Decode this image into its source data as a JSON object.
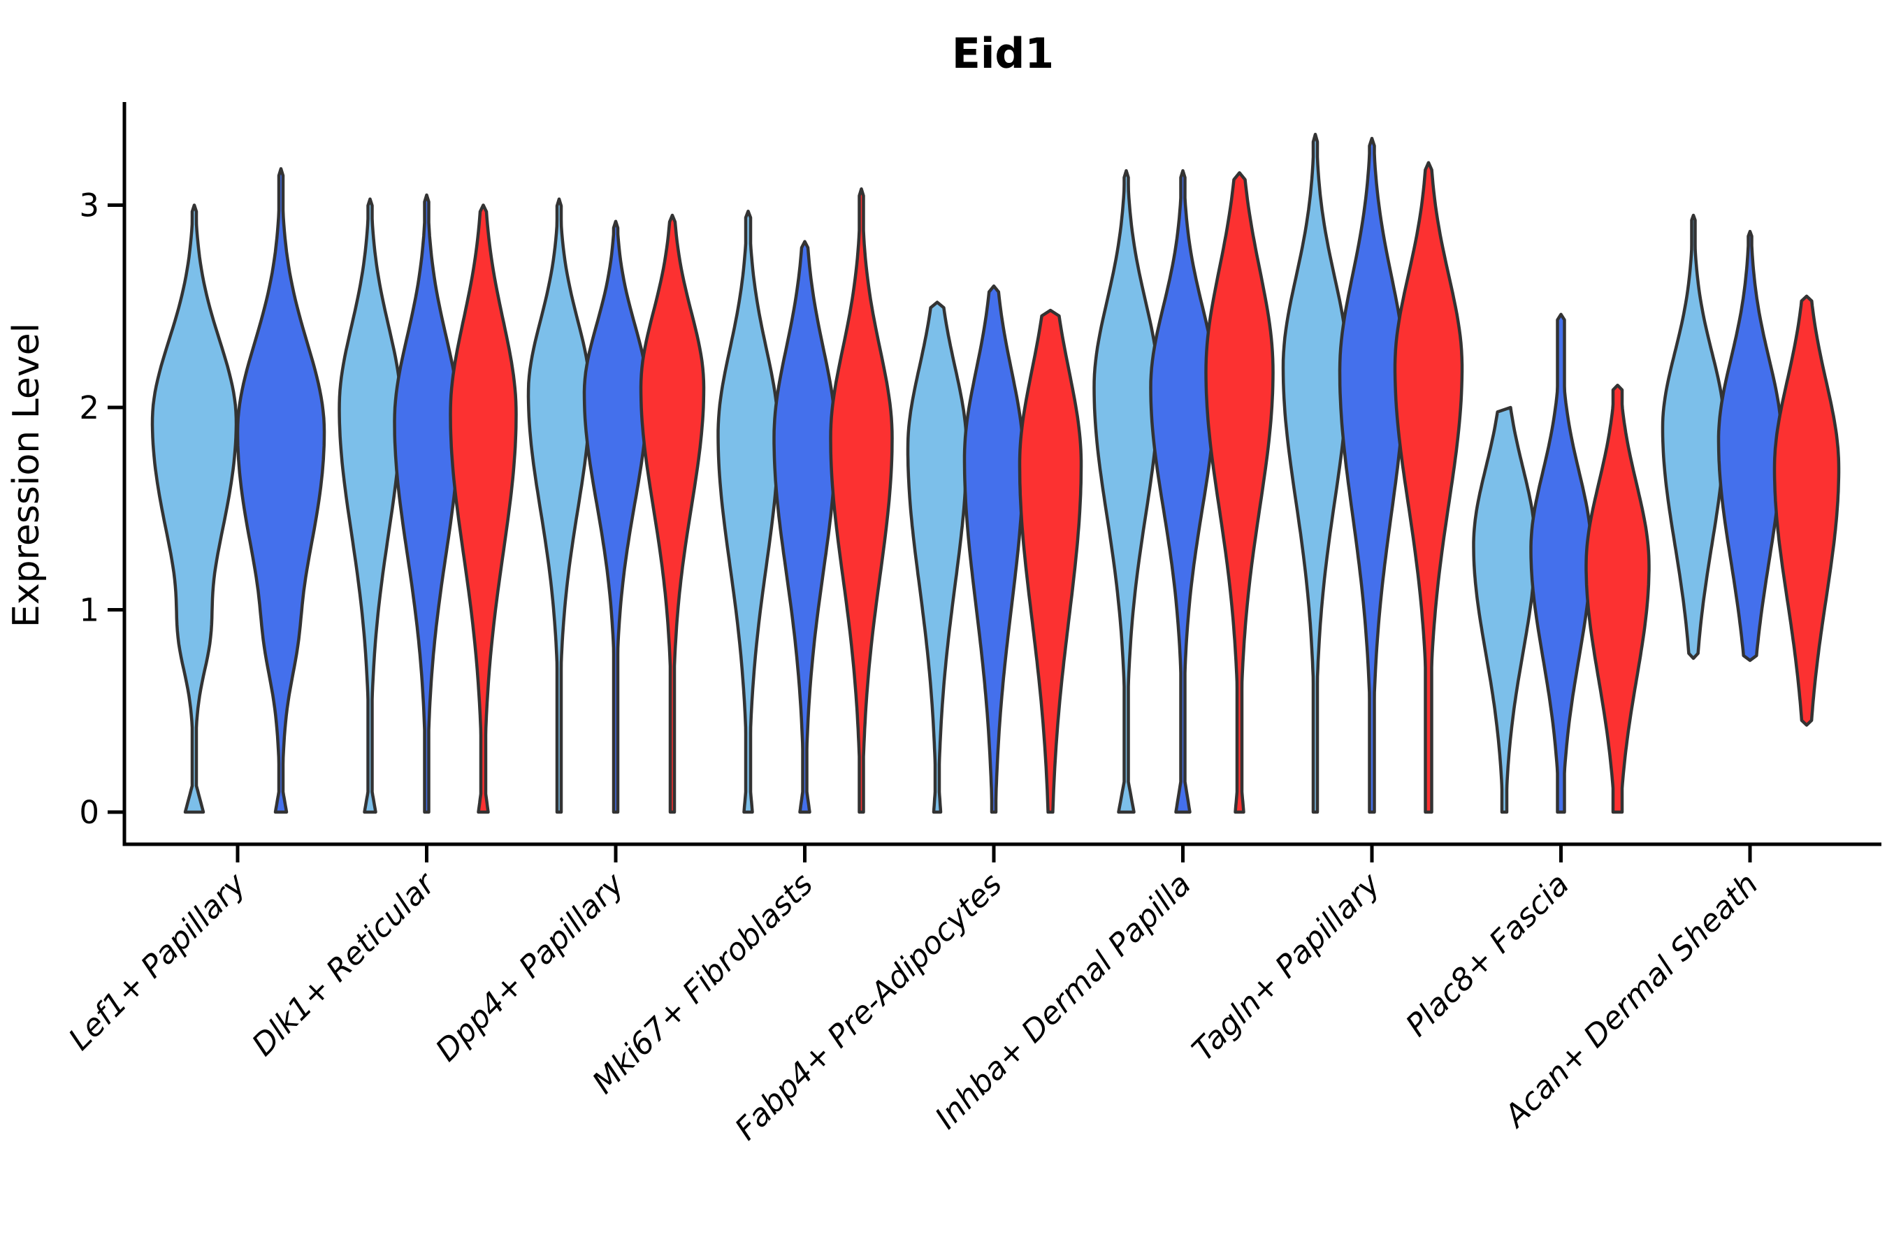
{
  "title": "Eid1",
  "colors": {
    "light_blue": "#7CBFEA",
    "dark_blue": "#4470EC",
    "red": "#FC3131",
    "violin_outline": "#333333",
    "axis": "#000000"
  },
  "chart_data": {
    "type": "violin",
    "title": "Eid1",
    "ylabel": "Expression Level",
    "xlabel": "",
    "ylim": [
      0,
      3.5
    ],
    "yticks": [
      "0",
      "1",
      "2",
      "3"
    ],
    "grid": false,
    "legend": "none",
    "categories": [
      "Lef1+ Papillary",
      "Dlk1+ Reticular",
      "Dpp4+ Papillary",
      "Mki67+ Fibroblasts",
      "Fabp4+ Pre-Adipocytes",
      "Inhba+ Dermal Papilla",
      "Tagln+ Papillary",
      "Plac8+ Fascia",
      "Acan+ Dermal Sheath"
    ],
    "splits": [
      {
        "split": 1,
        "color_key": "light_blue"
      },
      {
        "split": 2,
        "color_key": "dark_blue"
      },
      {
        "split": 3,
        "color_key": "red"
      }
    ],
    "violins": [
      {
        "category": "Lef1+ Papillary",
        "split": 1,
        "dx": -62,
        "min": 0,
        "max": 3.0,
        "mode": 1.93,
        "spread": 0.4,
        "taper": 1.5,
        "hw": 60,
        "stem": 3,
        "foot": {
          "w": 13,
          "h": 0.13
        },
        "bump": {
          "v": 0.85,
          "w": 11,
          "s": 0.17
        },
        "flat_top": false
      },
      {
        "category": "Lef1+ Papillary",
        "split": 2,
        "dx": 62,
        "min": 0,
        "max": 3.18,
        "mode": 1.88,
        "spread": 0.44,
        "taper": 1.5,
        "hw": 62,
        "stem": 3,
        "foot": {
          "w": 8,
          "h": 0.1
        },
        "bump": {
          "v": 0.82,
          "w": 7,
          "s": 0.18
        },
        "flat_top": false
      },
      {
        "category": "Dlk1+ Reticular",
        "split": 1,
        "dx": -81,
        "min": 0,
        "max": 3.03,
        "mode": 2.0,
        "spread": 0.4,
        "taper": 1.55,
        "hw": 44,
        "stem": 3,
        "foot": {
          "w": 8,
          "h": 0.1
        },
        "bump": null,
        "flat_top": false
      },
      {
        "category": "Dlk1+ Reticular",
        "split": 2,
        "dx": 0,
        "min": 0,
        "max": 3.05,
        "mode": 1.93,
        "spread": 0.42,
        "taper": 1.55,
        "hw": 46,
        "stem": 3,
        "foot": null,
        "bump": null,
        "flat_top": false
      },
      {
        "category": "Dlk1+ Reticular",
        "split": 3,
        "dx": 81,
        "min": 0,
        "max": 3.0,
        "mode": 1.97,
        "spread": 0.46,
        "taper": 1.5,
        "hw": 47,
        "stem": 3.5,
        "foot": {
          "w": 7,
          "h": 0.09
        },
        "bump": null,
        "flat_top": false
      },
      {
        "category": "Dpp4+ Papillary",
        "split": 1,
        "dx": -81,
        "min": 0,
        "max": 3.03,
        "mode": 2.07,
        "spread": 0.36,
        "taper": 1.6,
        "hw": 44,
        "stem": 3,
        "foot": null,
        "bump": null,
        "flat_top": false
      },
      {
        "category": "Dpp4+ Papillary",
        "split": 2,
        "dx": 0,
        "min": 0,
        "max": 2.92,
        "mode": 2.07,
        "spread": 0.34,
        "taper": 1.6,
        "hw": 45,
        "stem": 3,
        "foot": null,
        "bump": null,
        "flat_top": false
      },
      {
        "category": "Dpp4+ Papillary",
        "split": 3,
        "dx": 81,
        "min": 0,
        "max": 2.95,
        "mode": 2.1,
        "spread": 0.37,
        "taper": 1.6,
        "hw": 45,
        "stem": 3,
        "foot": null,
        "bump": null,
        "flat_top": false
      },
      {
        "category": "Mki67+ Fibroblasts",
        "split": 1,
        "dx": -81,
        "min": 0,
        "max": 2.97,
        "mode": 1.87,
        "spread": 0.42,
        "taper": 1.55,
        "hw": 43,
        "stem": 3.5,
        "foot": {
          "w": 6,
          "h": 0.1
        },
        "bump": null,
        "flat_top": false
      },
      {
        "category": "Mki67+ Fibroblasts",
        "split": 2,
        "dx": 0,
        "min": 0,
        "max": 2.82,
        "mode": 1.85,
        "spread": 0.44,
        "taper": 1.5,
        "hw": 44,
        "stem": 3,
        "foot": {
          "w": 7,
          "h": 0.1
        },
        "bump": null,
        "flat_top": false
      },
      {
        "category": "Mki67+ Fibroblasts",
        "split": 3,
        "dx": 81,
        "min": 0,
        "max": 3.08,
        "mode": 1.85,
        "spread": 0.44,
        "taper": 1.55,
        "hw": 44,
        "stem": 3,
        "foot": null,
        "bump": null,
        "flat_top": false
      },
      {
        "category": "Fabp4+ Pre-Adipocytes",
        "split": 1,
        "dx": -81,
        "min": 0,
        "max": 2.52,
        "mode": 1.8,
        "spread": 0.4,
        "taper": 1.7,
        "hw": 42,
        "stem": 3,
        "foot": {
          "w": 5,
          "h": 0.1
        },
        "bump": null,
        "flat_top": false
      },
      {
        "category": "Fabp4+ Pre-Adipocytes",
        "split": 2,
        "dx": 0,
        "min": 0,
        "max": 2.6,
        "mode": 1.75,
        "spread": 0.43,
        "taper": 1.7,
        "hw": 42,
        "stem": 3,
        "foot": null,
        "bump": null,
        "flat_top": false
      },
      {
        "category": "Fabp4+ Pre-Adipocytes",
        "split": 3,
        "dx": 81,
        "min": 0,
        "max": 2.48,
        "mode": 1.72,
        "spread": 0.46,
        "taper": 1.65,
        "hw": 44,
        "stem": 3,
        "foot": null,
        "bump": null,
        "flat_top": false
      },
      {
        "category": "Inhba+ Dermal Papilla",
        "split": 1,
        "dx": -81,
        "min": 0,
        "max": 3.17,
        "mode": 2.1,
        "spread": 0.42,
        "taper": 1.5,
        "hw": 46,
        "stem": 3,
        "foot": {
          "w": 11,
          "h": 0.15
        },
        "bump": null,
        "flat_top": false
      },
      {
        "category": "Inhba+ Dermal Papilla",
        "split": 2,
        "dx": 0,
        "min": 0,
        "max": 3.17,
        "mode": 2.1,
        "spread": 0.4,
        "taper": 1.5,
        "hw": 46,
        "stem": 3,
        "foot": {
          "w": 10,
          "h": 0.15
        },
        "bump": null,
        "flat_top": false
      },
      {
        "category": "Inhba+ Dermal Papilla",
        "split": 3,
        "dx": 81,
        "min": 0,
        "max": 3.16,
        "mode": 2.18,
        "spread": 0.5,
        "taper": 1.35,
        "hw": 48,
        "stem": 3.5,
        "foot": {
          "w": 6,
          "h": 0.1
        },
        "bump": null,
        "flat_top": false
      },
      {
        "category": "Tagln+ Papillary",
        "split": 1,
        "dx": -81,
        "min": 0,
        "max": 3.35,
        "mode": 2.2,
        "spread": 0.44,
        "taper": 1.5,
        "hw": 46,
        "stem": 3,
        "foot": null,
        "bump": null,
        "flat_top": false
      },
      {
        "category": "Tagln+ Papillary",
        "split": 2,
        "dx": 0,
        "min": 0,
        "max": 3.33,
        "mode": 2.18,
        "spread": 0.47,
        "taper": 1.5,
        "hw": 46,
        "stem": 3.5,
        "foot": null,
        "bump": null,
        "flat_top": false
      },
      {
        "category": "Tagln+ Papillary",
        "split": 3,
        "dx": 81,
        "min": 0,
        "max": 3.21,
        "mode": 2.2,
        "spread": 0.45,
        "taper": 1.5,
        "hw": 48,
        "stem": 4.5,
        "foot": null,
        "bump": null,
        "flat_top": false
      },
      {
        "category": "Plac8+ Fascia",
        "split": 1,
        "dx": -81,
        "min": 0,
        "max": 2.0,
        "mode": 1.32,
        "spread": 0.38,
        "taper": 1.4,
        "hw": 44,
        "stem": 3.5,
        "foot": null,
        "bump": null,
        "flat_top": true
      },
      {
        "category": "Plac8+ Fascia",
        "split": 2,
        "dx": 0,
        "min": 0,
        "max": 2.46,
        "mode": 1.3,
        "spread": 0.38,
        "taper": 1.4,
        "hw": 43,
        "stem": 5,
        "foot": null,
        "bump": null,
        "flat_top": false
      },
      {
        "category": "Plac8+ Fascia",
        "split": 3,
        "dx": 81,
        "min": 0,
        "max": 2.11,
        "mode": 1.22,
        "spread": 0.4,
        "taper": 1.4,
        "hw": 45,
        "stem": 6.5,
        "foot": null,
        "bump": null,
        "flat_top": false
      },
      {
        "category": "Acan+ Dermal Sheath",
        "split": 1,
        "dx": -81,
        "min": 0.76,
        "max": 2.95,
        "mode": 1.9,
        "spread": 0.37,
        "taper": 1.55,
        "hw": 44,
        "stem": 2.5,
        "foot": null,
        "bump": null,
        "flat_top": false
      },
      {
        "category": "Acan+ Dermal Sheath",
        "split": 2,
        "dx": 0,
        "min": 0.75,
        "max": 2.87,
        "mode": 1.84,
        "spread": 0.4,
        "taper": 1.5,
        "hw": 45,
        "stem": 2.5,
        "foot": null,
        "bump": null,
        "flat_top": false
      },
      {
        "category": "Acan+ Dermal Sheath",
        "split": 3,
        "dx": 81,
        "min": 0.43,
        "max": 2.55,
        "mode": 1.7,
        "spread": 0.43,
        "taper": 1.5,
        "hw": 46,
        "stem": 2.5,
        "foot": null,
        "bump": null,
        "flat_top": false
      }
    ]
  }
}
